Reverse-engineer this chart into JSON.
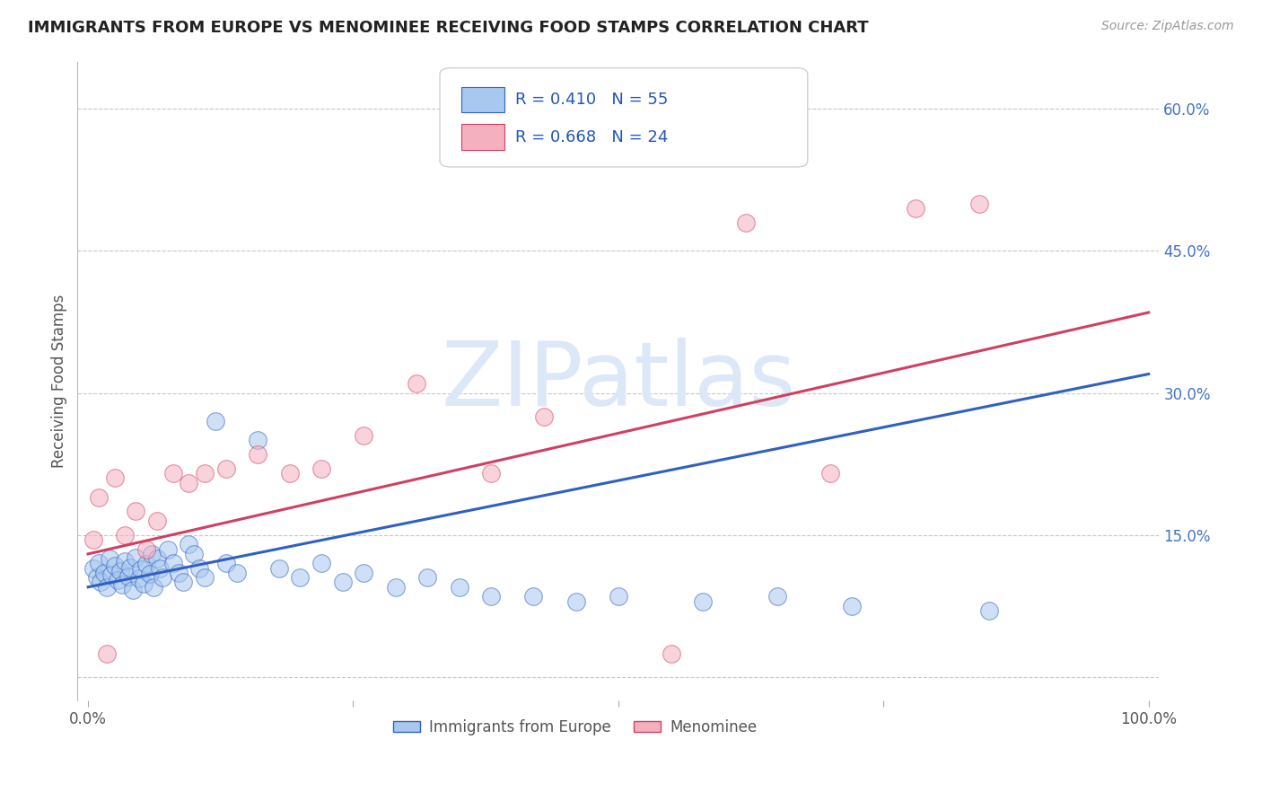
{
  "title": "IMMIGRANTS FROM EUROPE VS MENOMINEE RECEIVING FOOD STAMPS CORRELATION CHART",
  "source": "Source: ZipAtlas.com",
  "ylabel": "Receiving Food Stamps",
  "legend_label1": "Immigrants from Europe",
  "legend_label2": "Menominee",
  "R1": 0.41,
  "N1": 55,
  "R2": 0.668,
  "N2": 24,
  "color1": "#a8c8f0",
  "color2": "#f5b0c0",
  "line_color1": "#3060c0",
  "line_color2": "#d04060",
  "background_color": "#ffffff",
  "grid_color": "#c8c8c8",
  "watermark": "ZIPatlas",
  "watermark_color": "#dce8f8",
  "xlim": [
    -0.01,
    1.01
  ],
  "ylim": [
    -0.025,
    0.65
  ],
  "xticks": [
    0.0,
    0.25,
    0.5,
    0.75,
    1.0
  ],
  "xtick_labels_show": [
    "0.0%",
    "",
    "",
    "",
    "100.0%"
  ],
  "yticks": [
    0.0,
    0.15,
    0.3,
    0.45,
    0.6
  ],
  "ytick_labels": [
    "",
    "15.0%",
    "30.0%",
    "45.0%",
    "60.0%"
  ],
  "blue_scatter_x": [
    0.005,
    0.008,
    0.01,
    0.012,
    0.015,
    0.018,
    0.02,
    0.022,
    0.025,
    0.028,
    0.03,
    0.032,
    0.035,
    0.038,
    0.04,
    0.042,
    0.045,
    0.048,
    0.05,
    0.052,
    0.055,
    0.058,
    0.06,
    0.062,
    0.065,
    0.068,
    0.07,
    0.075,
    0.08,
    0.085,
    0.09,
    0.095,
    0.1,
    0.105,
    0.11,
    0.12,
    0.13,
    0.14,
    0.16,
    0.18,
    0.2,
    0.22,
    0.24,
    0.26,
    0.29,
    0.32,
    0.35,
    0.38,
    0.42,
    0.46,
    0.5,
    0.58,
    0.65,
    0.72,
    0.85
  ],
  "blue_scatter_y": [
    0.115,
    0.105,
    0.12,
    0.1,
    0.11,
    0.095,
    0.125,
    0.108,
    0.118,
    0.102,
    0.112,
    0.098,
    0.122,
    0.106,
    0.116,
    0.092,
    0.126,
    0.104,
    0.114,
    0.099,
    0.119,
    0.109,
    0.13,
    0.095,
    0.125,
    0.115,
    0.105,
    0.135,
    0.12,
    0.11,
    0.1,
    0.14,
    0.13,
    0.115,
    0.105,
    0.27,
    0.12,
    0.11,
    0.25,
    0.115,
    0.105,
    0.12,
    0.1,
    0.11,
    0.095,
    0.105,
    0.095,
    0.085,
    0.085,
    0.08,
    0.085,
    0.08,
    0.085,
    0.075,
    0.07
  ],
  "pink_scatter_x": [
    0.005,
    0.01,
    0.018,
    0.025,
    0.035,
    0.045,
    0.055,
    0.065,
    0.08,
    0.095,
    0.11,
    0.13,
    0.16,
    0.19,
    0.22,
    0.26,
    0.31,
    0.38,
    0.43,
    0.55,
    0.62,
    0.7,
    0.78,
    0.84
  ],
  "pink_scatter_y": [
    0.145,
    0.19,
    0.025,
    0.21,
    0.15,
    0.175,
    0.135,
    0.165,
    0.215,
    0.205,
    0.215,
    0.22,
    0.235,
    0.215,
    0.22,
    0.255,
    0.31,
    0.215,
    0.275,
    0.025,
    0.48,
    0.215,
    0.495,
    0.5
  ],
  "blue_trend_x": [
    0.0,
    1.0
  ],
  "blue_trend_y": [
    0.095,
    0.32
  ],
  "pink_trend_x": [
    0.0,
    1.0
  ],
  "pink_trend_y": [
    0.13,
    0.385
  ]
}
